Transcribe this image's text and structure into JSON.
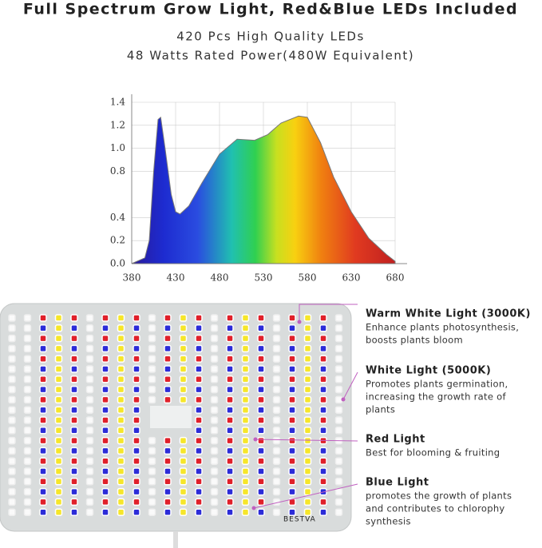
{
  "header": {
    "title": "Full Spectrum Grow Light, Red&Blue LEDs Included",
    "line1": "420 Pcs High Quality LEDs",
    "line2": "48 Watts Rated Power(480W Equivalent)"
  },
  "chart_data": {
    "type": "area",
    "x": [
      380,
      395,
      400,
      405,
      410,
      413,
      418,
      425,
      430,
      435,
      445,
      460,
      480,
      500,
      520,
      535,
      550,
      570,
      580,
      595,
      610,
      630,
      650,
      670,
      680
    ],
    "values": [
      0,
      0.05,
      0.2,
      0.8,
      1.25,
      1.27,
      1.0,
      0.6,
      0.45,
      0.43,
      0.5,
      0.7,
      0.95,
      1.08,
      1.07,
      1.12,
      1.22,
      1.28,
      1.27,
      1.05,
      0.75,
      0.45,
      0.22,
      0.08,
      0.02
    ],
    "xlim": [
      380,
      680
    ],
    "xticks": [
      380,
      430,
      480,
      530,
      580,
      630,
      680
    ],
    "ylim": [
      0,
      1.4
    ],
    "yticks": [
      {
        "value": 0,
        "label": "0.0"
      },
      0.2,
      0.4,
      0.8,
      {
        "value": 1,
        "label": "1.0"
      },
      1.2,
      1.4
    ],
    "grid": true
  },
  "panel": {
    "brand": "BESTVA",
    "callouts": [
      {
        "title": "Warm White Light (3000K)",
        "text": [
          "Enhance plants photosynthesis,",
          "boosts plants bloom"
        ]
      },
      {
        "title": "White Light (5000K)",
        "text": [
          "Promotes plants germination,",
          "increasing the growth rate of",
          "plants"
        ]
      },
      {
        "title": "Red Light",
        "text": [
          "Best for blooming & fruiting"
        ]
      },
      {
        "title": "Blue Light",
        "text": [
          "promotes the growth of plants",
          "and contributes to chlorophy",
          "synthesis"
        ]
      }
    ]
  }
}
